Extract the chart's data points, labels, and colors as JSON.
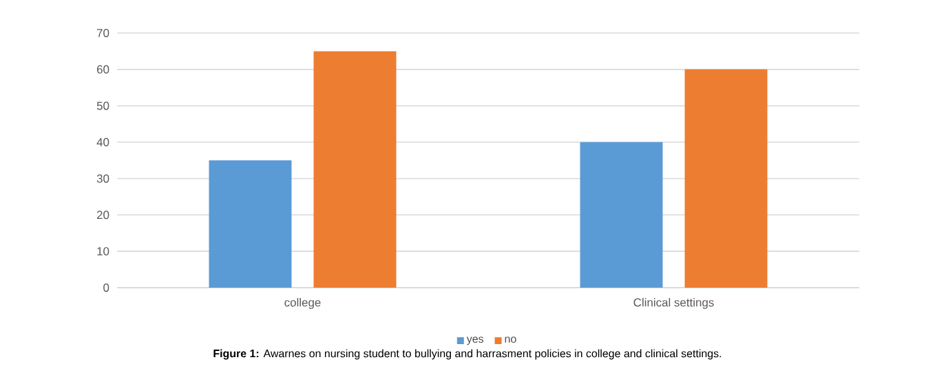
{
  "chart_data": {
    "type": "bar",
    "categories": [
      "college",
      "Clinical settings"
    ],
    "series": [
      {
        "name": "yes",
        "color": "#5b9bd5",
        "values": [
          35,
          40
        ]
      },
      {
        "name": "no",
        "color": "#ed7d31",
        "values": [
          65,
          60
        ]
      }
    ],
    "ylim": [
      0,
      70
    ],
    "yticks": [
      0,
      10,
      20,
      30,
      40,
      50,
      60,
      70
    ],
    "grid": "y",
    "legend": "bottom",
    "annotations": [
      "**Figure 1:** Awarnes on nursing student to bullying and harrasment policies in college and clinical settings."
    ]
  }
}
